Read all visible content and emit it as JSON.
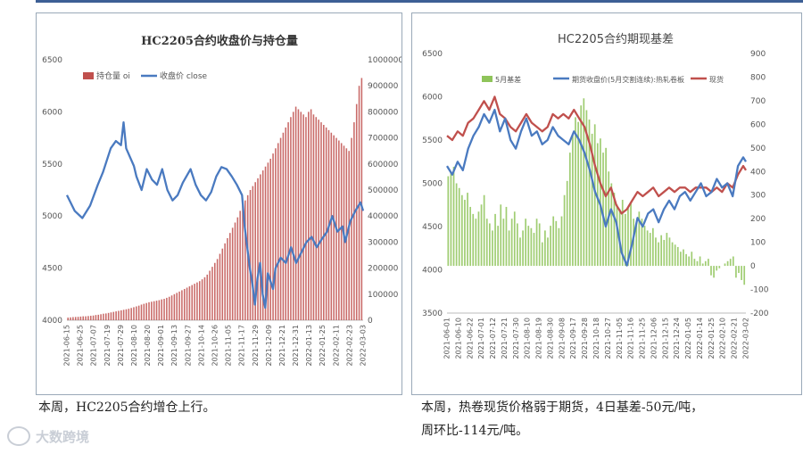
{
  "chart_data": [
    {
      "type": "bar+line",
      "title": "HC2205合约收盘价与持仓量",
      "series": [
        {
          "name": "持仓量 oi",
          "color": "#c0504d",
          "axis": "right"
        },
        {
          "name": "收盘价 close",
          "color": "#4a7ac0",
          "axis": "left"
        }
      ],
      "ylim_left": [
        4000,
        6500
      ],
      "yticks_left": [
        "6500",
        "6000",
        "5500",
        "5000",
        "4500",
        "4000"
      ],
      "ylim_right": [
        0,
        1000000
      ],
      "yticks_right": [
        "1000000",
        "900000",
        "800000",
        "700000",
        "600000",
        "500000",
        "400000",
        "300000",
        "200000",
        "100000",
        "0"
      ],
      "x_tick_labels": [
        "2021-06-15",
        "2021-06-25",
        "2021-07-07",
        "2021-07-19",
        "2021-07-29",
        "2021-08-10",
        "2021-08-20",
        "2021-09-01",
        "2021-09-13",
        "2021-09-27",
        "2021-10-14",
        "2021-10-26",
        "2021-11-05",
        "2021-11-17",
        "2021-11-29",
        "2021-12-09",
        "2021-12-21",
        "2021-12-31",
        "2022-01-13",
        "2022-01-25",
        "2022-02-11",
        "2022-02-23",
        "2022-03-03"
      ],
      "close_points": [
        [
          0,
          5200
        ],
        [
          3,
          5050
        ],
        [
          6,
          4980
        ],
        [
          9,
          5100
        ],
        [
          12,
          5300
        ],
        [
          14,
          5420
        ],
        [
          17,
          5650
        ],
        [
          19,
          5720
        ],
        [
          21,
          5680
        ],
        [
          22,
          5900
        ],
        [
          23,
          5650
        ],
        [
          26,
          5480
        ],
        [
          27,
          5380
        ],
        [
          29,
          5250
        ],
        [
          31,
          5450
        ],
        [
          33,
          5350
        ],
        [
          35,
          5300
        ],
        [
          37,
          5450
        ],
        [
          39,
          5250
        ],
        [
          41,
          5150
        ],
        [
          43,
          5200
        ],
        [
          45,
          5320
        ],
        [
          48,
          5450
        ],
        [
          50,
          5300
        ],
        [
          52,
          5200
        ],
        [
          54,
          5150
        ],
        [
          56,
          5230
        ],
        [
          58,
          5380
        ],
        [
          60,
          5470
        ],
        [
          62,
          5450
        ],
        [
          64,
          5380
        ],
        [
          66,
          5300
        ],
        [
          68,
          5200
        ],
        [
          69,
          4900
        ],
        [
          70,
          4700
        ],
        [
          71,
          4500
        ],
        [
          72,
          4350
        ],
        [
          73,
          4150
        ],
        [
          74,
          4400
        ],
        [
          75,
          4550
        ],
        [
          76,
          4250
        ],
        [
          77,
          4120
        ],
        [
          78,
          4450
        ],
        [
          80,
          4300
        ],
        [
          81,
          4500
        ],
        [
          83,
          4600
        ],
        [
          85,
          4550
        ],
        [
          87,
          4700
        ],
        [
          89,
          4550
        ],
        [
          91,
          4650
        ],
        [
          93,
          4750
        ],
        [
          95,
          4800
        ],
        [
          97,
          4700
        ],
        [
          99,
          4780
        ],
        [
          101,
          4850
        ],
        [
          103,
          5000
        ],
        [
          105,
          4850
        ],
        [
          107,
          4900
        ],
        [
          108,
          4750
        ],
        [
          110,
          4950
        ],
        [
          112,
          5050
        ],
        [
          114,
          5130
        ],
        [
          115,
          5050
        ]
      ],
      "oi_values": [
        10000,
        11000,
        12000,
        12500,
        13000,
        14000,
        15000,
        15000,
        16000,
        17000,
        18000,
        20000,
        21000,
        23000,
        25000,
        26000,
        28000,
        30000,
        32000,
        34000,
        36000,
        38000,
        40000,
        42000,
        44000,
        47000,
        50000,
        53000,
        56000,
        60000,
        63000,
        66000,
        69000,
        71000,
        73000,
        75000,
        77000,
        80000,
        82000,
        86000,
        90000,
        95000,
        100000,
        105000,
        110000,
        115000,
        120000,
        125000,
        130000,
        135000,
        140000,
        145000,
        150000,
        157000,
        165000,
        175000,
        190000,
        205000,
        220000,
        235000,
        255000,
        275000,
        295000,
        315000,
        335000,
        355000,
        375000,
        395000,
        420000,
        440000,
        460000,
        480000,
        500000,
        515000,
        530000,
        545000,
        560000,
        575000,
        590000,
        605000,
        620000,
        640000,
        660000,
        680000,
        700000,
        720000,
        740000,
        760000,
        780000,
        800000,
        820000,
        810000,
        800000,
        790000,
        780000,
        800000,
        810000,
        790000,
        780000,
        770000,
        760000,
        750000,
        740000,
        730000,
        720000,
        710000,
        700000,
        690000,
        680000,
        670000,
        660000,
        650000,
        700000,
        760000,
        830000,
        900000,
        930000
      ]
    },
    {
      "type": "bar+line",
      "title": "HC2205合约期现基差",
      "series": [
        {
          "name": "5月基差",
          "color": "#8fc45a",
          "axis": "right"
        },
        {
          "name": "期货收盘价(5月交割连续):热轧卷板",
          "color": "#4a7ac0",
          "axis": "left"
        },
        {
          "name": "现货",
          "color": "#c0504d",
          "axis": "left"
        }
      ],
      "ylim_left": [
        3500,
        6500
      ],
      "yticks_left": [
        "6500",
        "6000",
        "5500",
        "5000",
        "4500",
        "4000",
        "3500"
      ],
      "ylim_right": [
        -200,
        900
      ],
      "yticks_right": [
        "900",
        "800",
        "700",
        "600",
        "500",
        "400",
        "300",
        "200",
        "100",
        "0",
        "-100",
        "-200"
      ],
      "x_tick_labels": [
        "2021-06-01",
        "2021-06-10",
        "2021-06-22",
        "2021-07-01",
        "2021-07-12",
        "2021-07-21",
        "2021-07-30",
        "2021-08-10",
        "2021-08-19",
        "2021-08-30",
        "2021-09-08",
        "2021-09-17",
        "2021-09-28",
        "2021-10-18",
        "2021-10-27",
        "2021-11-05",
        "2021-11-16",
        "2021-11-25",
        "2021-12-06",
        "2021-12-15",
        "2021-12-24",
        "2022-01-05",
        "2022-01-14",
        "2022-01-25",
        "2022-02-10",
        "2022-02-21",
        "2022-03-02"
      ],
      "futures_points": [
        [
          0,
          5200
        ],
        [
          2,
          5100
        ],
        [
          4,
          5250
        ],
        [
          6,
          5150
        ],
        [
          8,
          5400
        ],
        [
          10,
          5550
        ],
        [
          12,
          5650
        ],
        [
          14,
          5800
        ],
        [
          16,
          5700
        ],
        [
          18,
          5850
        ],
        [
          20,
          5600
        ],
        [
          22,
          5750
        ],
        [
          24,
          5500
        ],
        [
          26,
          5400
        ],
        [
          28,
          5600
        ],
        [
          30,
          5750
        ],
        [
          32,
          5550
        ],
        [
          34,
          5600
        ],
        [
          36,
          5450
        ],
        [
          38,
          5500
        ],
        [
          40,
          5650
        ],
        [
          42,
          5550
        ],
        [
          44,
          5500
        ],
        [
          46,
          5450
        ],
        [
          48,
          5600
        ],
        [
          50,
          5500
        ],
        [
          52,
          5350
        ],
        [
          54,
          5150
        ],
        [
          56,
          4900
        ],
        [
          58,
          4750
        ],
        [
          60,
          4500
        ],
        [
          62,
          4700
        ],
        [
          64,
          4550
        ],
        [
          66,
          4200
        ],
        [
          68,
          4050
        ],
        [
          70,
          4300
        ],
        [
          72,
          4600
        ],
        [
          74,
          4500
        ],
        [
          76,
          4650
        ],
        [
          78,
          4700
        ],
        [
          80,
          4550
        ],
        [
          82,
          4700
        ],
        [
          84,
          4800
        ],
        [
          86,
          4700
        ],
        [
          88,
          4850
        ],
        [
          90,
          4900
        ],
        [
          92,
          4800
        ],
        [
          94,
          4900
        ],
        [
          96,
          5000
        ],
        [
          98,
          4850
        ],
        [
          100,
          4900
        ],
        [
          102,
          5050
        ],
        [
          104,
          4950
        ],
        [
          106,
          5000
        ],
        [
          108,
          4850
        ],
        [
          110,
          5200
        ],
        [
          112,
          5300
        ],
        [
          113,
          5250
        ]
      ],
      "spot_points": [
        [
          0,
          5550
        ],
        [
          2,
          5500
        ],
        [
          4,
          5600
        ],
        [
          6,
          5550
        ],
        [
          8,
          5700
        ],
        [
          10,
          5750
        ],
        [
          12,
          5850
        ],
        [
          14,
          5950
        ],
        [
          16,
          5850
        ],
        [
          18,
          6000
        ],
        [
          20,
          5800
        ],
        [
          22,
          5750
        ],
        [
          24,
          5650
        ],
        [
          26,
          5600
        ],
        [
          28,
          5700
        ],
        [
          30,
          5800
        ],
        [
          32,
          5700
        ],
        [
          34,
          5650
        ],
        [
          36,
          5600
        ],
        [
          38,
          5650
        ],
        [
          40,
          5800
        ],
        [
          42,
          5750
        ],
        [
          44,
          5800
        ],
        [
          46,
          5750
        ],
        [
          48,
          5850
        ],
        [
          50,
          5750
        ],
        [
          52,
          5650
        ],
        [
          54,
          5450
        ],
        [
          56,
          5200
        ],
        [
          58,
          5000
        ],
        [
          60,
          4850
        ],
        [
          62,
          4950
        ],
        [
          64,
          4750
        ],
        [
          66,
          4650
        ],
        [
          68,
          4700
        ],
        [
          70,
          4800
        ],
        [
          72,
          4900
        ],
        [
          74,
          4850
        ],
        [
          76,
          4900
        ],
        [
          78,
          4950
        ],
        [
          80,
          4850
        ],
        [
          82,
          4900
        ],
        [
          84,
          4950
        ],
        [
          86,
          4900
        ],
        [
          88,
          4950
        ],
        [
          90,
          4950
        ],
        [
          92,
          4900
        ],
        [
          94,
          4950
        ],
        [
          96,
          4950
        ],
        [
          98,
          4950
        ],
        [
          100,
          4900
        ],
        [
          102,
          4950
        ],
        [
          104,
          4900
        ],
        [
          106,
          5000
        ],
        [
          108,
          4950
        ],
        [
          110,
          5100
        ],
        [
          112,
          5200
        ],
        [
          113,
          5150
        ]
      ],
      "basis_values": [
        380,
        400,
        420,
        350,
        330,
        300,
        280,
        310,
        250,
        220,
        200,
        230,
        260,
        300,
        200,
        180,
        150,
        220,
        170,
        260,
        200,
        250,
        150,
        200,
        230,
        180,
        120,
        150,
        200,
        170,
        160,
        140,
        200,
        180,
        100,
        150,
        120,
        170,
        210,
        190,
        160,
        210,
        300,
        360,
        480,
        560,
        630,
        610,
        680,
        710,
        660,
        620,
        560,
        600,
        520,
        540,
        480,
        500,
        400,
        350,
        310,
        260,
        240,
        280,
        220,
        250,
        270,
        200,
        180,
        230,
        200,
        170,
        150,
        140,
        160,
        120,
        100,
        130,
        110,
        140,
        120,
        100,
        90,
        80,
        60,
        70,
        50,
        40,
        60,
        30,
        20,
        40,
        10,
        20,
        30,
        -40,
        -50,
        -20,
        -10,
        0,
        10,
        20,
        30,
        40,
        -50,
        -30,
        -60,
        -80
      ]
    }
  ],
  "captions": {
    "left": "本周，HC2205合约增仓上行。",
    "right_line1": "本周，热卷现货价格弱于期货，4日基差-50元/吨，",
    "right_line2": "周环比-114元/吨。"
  },
  "watermark": "大数跨境"
}
